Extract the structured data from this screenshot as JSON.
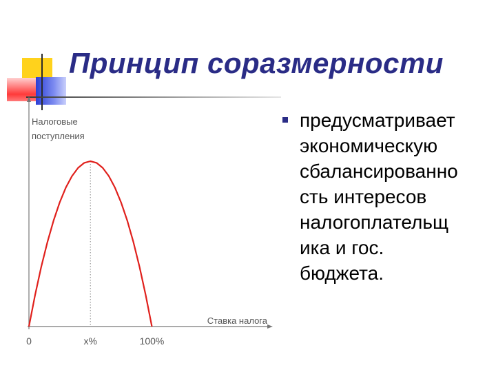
{
  "slide": {
    "title": "Принцип соразмерности",
    "bullet_text": "предусматривает\nэкономическую\nсбалансированно\nсть интересов\nналогоплательщ\nика и гос.\nбюджета.",
    "bullet_icon": "square-bullet-icon"
  },
  "colors": {
    "title": "#2a2c86",
    "curve": "#e0201c",
    "accent_yellow": "#ffd21c",
    "accent_red": "#ff3a3a",
    "accent_blue": "#2c3fd6"
  },
  "chart_data": {
    "type": "line",
    "ylabel_lines": [
      "Налоговые",
      "поступления"
    ],
    "xlabel": "Ставка налога",
    "x_ticks": [
      "0",
      "x%",
      "100%"
    ],
    "x_tick_values": [
      0,
      50,
      100
    ],
    "series": [
      {
        "x": [
          0,
          5,
          10,
          15,
          20,
          25,
          30,
          35,
          40,
          45,
          50,
          55,
          60,
          65,
          70,
          75,
          80,
          85,
          90,
          95,
          100
        ],
        "y": [
          0,
          19,
          36,
          51,
          64,
          75,
          84,
          91,
          96,
          99,
          100,
          99,
          96,
          91,
          84,
          75,
          64,
          51,
          36,
          19,
          0
        ]
      }
    ],
    "xlim": [
      0,
      195
    ],
    "ylim": [
      0,
      135
    ],
    "peak_guide": "dotted vertical line at x%"
  }
}
